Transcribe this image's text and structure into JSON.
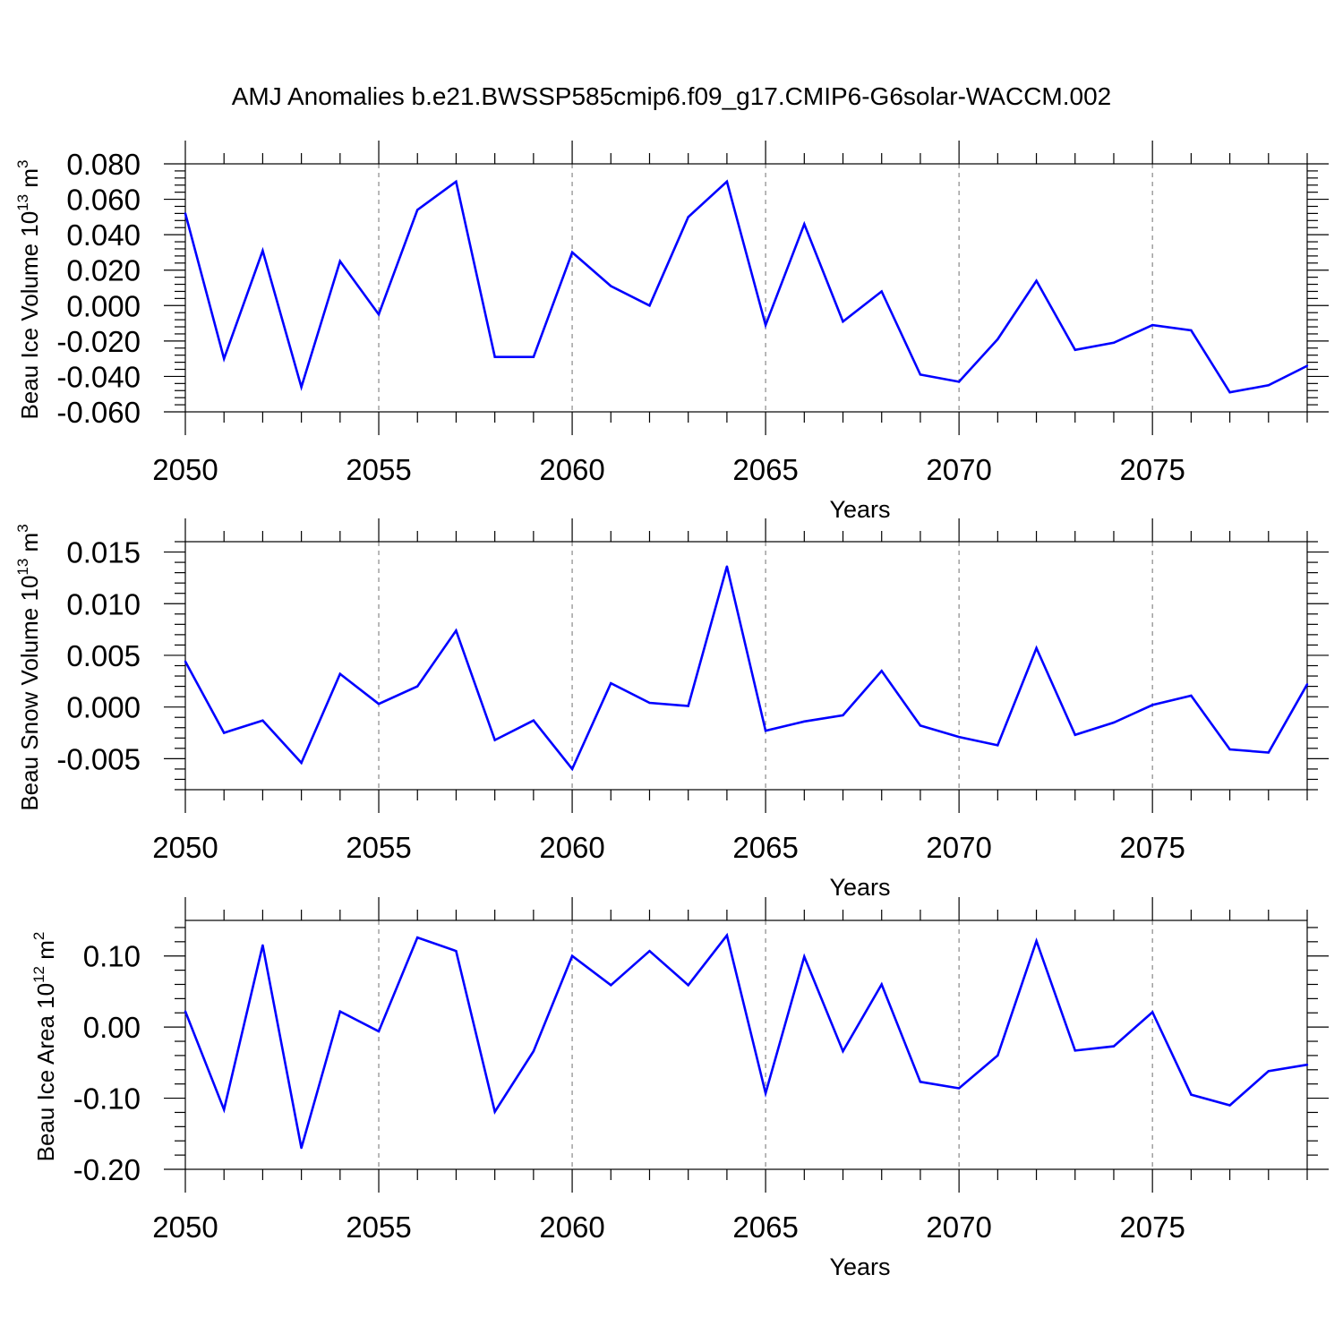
{
  "title": "AMJ Anomalies b.e21.BWSSP585cmip6.f09_g17.CMIP6-G6solar-WACCM.002",
  "colors": {
    "series": "#0000ff",
    "axis": "#000000",
    "grid": "#888888"
  },
  "chart_data": [
    {
      "type": "line",
      "xlabel": "Years",
      "ylabel": {
        "text": "Beau Ice Volume 10",
        "sup": "13",
        "unit": " m",
        "unit_sup": "3"
      },
      "xlim": [
        2050,
        2079
      ],
      "ylim": [
        -0.06,
        0.08
      ],
      "xticks": [
        2050,
        2055,
        2060,
        2065,
        2070,
        2075
      ],
      "xticklabels": [
        "2050",
        "2055",
        "2060",
        "2065",
        "2070",
        "2075"
      ],
      "yticks": [
        -0.06,
        -0.04,
        -0.02,
        0.0,
        0.02,
        0.04,
        0.06,
        0.08
      ],
      "yticklabels": [
        "-0.060",
        "-0.040",
        "-0.020",
        "0.000",
        "0.020",
        "0.040",
        "0.060",
        "0.080"
      ],
      "grid": "vertical dashed at major x ticks",
      "x": [
        2050,
        2051,
        2052,
        2053,
        2054,
        2055,
        2056,
        2057,
        2058,
        2059,
        2060,
        2061,
        2062,
        2063,
        2064,
        2065,
        2066,
        2067,
        2068,
        2069,
        2070,
        2071,
        2072,
        2073,
        2074,
        2075,
        2076,
        2077,
        2078,
        2079
      ],
      "y": [
        0.052,
        -0.03,
        0.031,
        -0.046,
        0.025,
        -0.005,
        0.054,
        0.07,
        -0.029,
        -0.029,
        0.03,
        0.011,
        0.0,
        0.05,
        0.07,
        -0.011,
        0.046,
        -0.009,
        0.008,
        -0.039,
        -0.043,
        -0.019,
        0.014,
        -0.025,
        -0.021,
        -0.011,
        -0.014,
        -0.049,
        -0.045,
        -0.034
      ]
    },
    {
      "type": "line",
      "xlabel": "Years",
      "ylabel": {
        "text": "Beau Snow Volume 10",
        "sup": "13",
        "unit": " m",
        "unit_sup": "3"
      },
      "xlim": [
        2050,
        2079
      ],
      "ylim": [
        -0.008,
        0.016
      ],
      "xticks": [
        2050,
        2055,
        2060,
        2065,
        2070,
        2075
      ],
      "xticklabels": [
        "2050",
        "2055",
        "2060",
        "2065",
        "2070",
        "2075"
      ],
      "yticks": [
        -0.005,
        0.0,
        0.005,
        0.01,
        0.015
      ],
      "yticklabels": [
        "-0.005",
        "0.000",
        "0.005",
        "0.010",
        "0.015"
      ],
      "grid": "vertical dashed at major x ticks",
      "x": [
        2050,
        2051,
        2052,
        2053,
        2054,
        2055,
        2056,
        2057,
        2058,
        2059,
        2060,
        2061,
        2062,
        2063,
        2064,
        2065,
        2066,
        2067,
        2068,
        2069,
        2070,
        2071,
        2072,
        2073,
        2074,
        2075,
        2076,
        2077,
        2078,
        2079
      ],
      "y": [
        0.0044,
        -0.0025,
        -0.0013,
        -0.0054,
        0.0032,
        0.0003,
        0.002,
        0.0074,
        -0.0032,
        -0.0013,
        -0.006,
        0.0023,
        0.0004,
        0.0001,
        0.0136,
        -0.0023,
        -0.0014,
        -0.0008,
        0.0035,
        -0.0018,
        -0.0029,
        -0.0037,
        0.0057,
        -0.0027,
        -0.0015,
        0.0002,
        0.0011,
        -0.0041,
        -0.0044,
        0.0022
      ]
    },
    {
      "type": "line",
      "xlabel": "Years",
      "ylabel": {
        "text": "Beau Ice Area 10",
        "sup": "12",
        "unit": " m",
        "unit_sup": "2"
      },
      "xlim": [
        2050,
        2079
      ],
      "ylim": [
        -0.2,
        0.15
      ],
      "xticks": [
        2050,
        2055,
        2060,
        2065,
        2070,
        2075
      ],
      "xticklabels": [
        "2050",
        "2055",
        "2060",
        "2065",
        "2070",
        "2075"
      ],
      "yticks": [
        -0.2,
        -0.1,
        0.0,
        0.1
      ],
      "yticklabels": [
        "-0.20",
        "-0.10",
        "0.00",
        "0.10"
      ],
      "grid": "vertical dashed at major x ticks",
      "x": [
        2050,
        2051,
        2052,
        2053,
        2054,
        2055,
        2056,
        2057,
        2058,
        2059,
        2060,
        2061,
        2062,
        2063,
        2064,
        2065,
        2066,
        2067,
        2068,
        2069,
        2070,
        2071,
        2072,
        2073,
        2074,
        2075,
        2076,
        2077,
        2078,
        2079
      ],
      "y": [
        0.022,
        -0.116,
        0.115,
        -0.17,
        0.022,
        -0.006,
        0.126,
        0.107,
        -0.119,
        -0.034,
        0.1,
        0.059,
        0.107,
        0.059,
        0.129,
        -0.093,
        0.099,
        -0.034,
        0.06,
        -0.077,
        -0.086,
        -0.04,
        0.121,
        -0.033,
        -0.027,
        0.021,
        -0.095,
        -0.11,
        -0.062,
        -0.053
      ]
    }
  ]
}
